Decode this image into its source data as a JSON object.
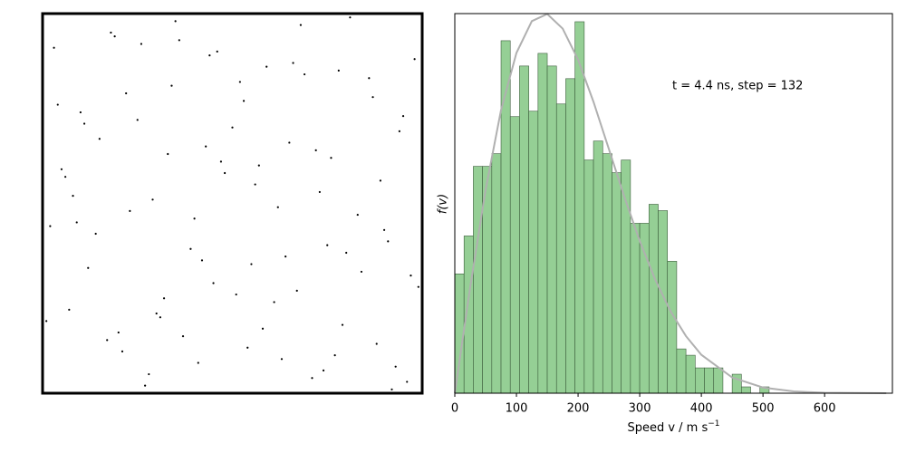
{
  "chart_data": [
    {
      "type": "scatter",
      "color": "#000000",
      "xlim": [
        0,
        1
      ],
      "ylim": [
        0,
        1
      ],
      "x": [
        0.03,
        0.12,
        0.25,
        0.37,
        0.48,
        0.59,
        0.71,
        0.83,
        0.94,
        0.07,
        0.18,
        0.29,
        0.41,
        0.53,
        0.64,
        0.76,
        0.88,
        0.98,
        0.02,
        0.15,
        0.27,
        0.34,
        0.45,
        0.56,
        0.68,
        0.79,
        0.91,
        0.1,
        0.21,
        0.33,
        0.44,
        0.51,
        0.62,
        0.74,
        0.86,
        0.97,
        0.05,
        0.17,
        0.26,
        0.39,
        0.5,
        0.61,
        0.73,
        0.81,
        0.93,
        0.09,
        0.22,
        0.31,
        0.43,
        0.55,
        0.66,
        0.77,
        0.89,
        0.99,
        0.04,
        0.14,
        0.28,
        0.36,
        0.47,
        0.58,
        0.69,
        0.8,
        0.92,
        0.11,
        0.23,
        0.32,
        0.46,
        0.54,
        0.65,
        0.75,
        0.87,
        0.96,
        0.06,
        0.19,
        0.3,
        0.4,
        0.52,
        0.63,
        0.72,
        0.84,
        0.95,
        0.08,
        0.2,
        0.35,
        0.42,
        0.57,
        0.67,
        0.78,
        0.9,
        0.01
      ],
      "y": [
        0.91,
        0.33,
        0.72,
        0.15,
        0.58,
        0.86,
        0.04,
        0.47,
        0.69,
        0.22,
        0.95,
        0.51,
        0.08,
        0.77,
        0.36,
        0.62,
        0.13,
        0.88,
        0.44,
        0.67,
        0.02,
        0.81,
        0.29,
        0.55,
        0.97,
        0.18,
        0.4,
        0.74,
        0.11,
        0.63,
        0.89,
        0.26,
        0.49,
        0.06,
        0.83,
        0.31,
        0.59,
        0.14,
        0.92,
        0.38,
        0.7,
        0.24,
        0.53,
        0.99,
        0.07,
        0.45,
        0.79,
        0.2,
        0.65,
        0.34,
        0.87,
        0.1,
        0.56,
        0.28,
        0.76,
        0.42,
        0.05,
        0.93,
        0.61,
        0.17,
        0.84,
        0.37,
        0.01,
        0.71,
        0.48,
        0.25,
        0.9,
        0.12,
        0.66,
        0.39,
        0.78,
        0.03,
        0.57,
        0.94,
        0.21,
        0.46,
        0.82,
        0.09,
        0.64,
        0.32,
        0.73,
        0.52,
        0.16,
        0.98,
        0.35,
        0.6,
        0.27,
        0.85,
        0.43,
        0.19
      ]
    },
    {
      "type": "histogram",
      "color": "#95cf95",
      "edgecolor": "#3d5e3d",
      "bins": [
        0,
        15,
        30,
        45,
        60,
        75,
        90,
        105,
        120,
        135,
        150,
        165,
        180,
        195,
        210,
        225,
        240,
        255,
        270,
        285,
        300,
        315,
        330,
        345,
        360,
        375,
        390,
        405,
        420,
        435,
        450,
        465,
        480,
        495,
        510
      ],
      "values": [
        132,
        174,
        251,
        251,
        265,
        390,
        306,
        362,
        312,
        376,
        362,
        320,
        348,
        411,
        258,
        279,
        265,
        244,
        258,
        188,
        188,
        209,
        202,
        146,
        49,
        42,
        28,
        28,
        28,
        0,
        21,
        7,
        0,
        7
      ],
      "curve": {
        "color": "#b0b0b0",
        "x": [
          0,
          25,
          50,
          75,
          100,
          125,
          150,
          175,
          200,
          225,
          250,
          275,
          300,
          325,
          350,
          375,
          400,
          450,
          500,
          550,
          600,
          700
        ],
        "y": [
          0,
          117.6,
          225.1,
          313.3,
          376.5,
          411.7,
          419.5,
          403.4,
          369.0,
          322.4,
          270.1,
          217.5,
          168.5,
          125.9,
          90.7,
          63.2,
          42.5,
          17.4,
          6.3,
          2.0,
          0.5,
          0
        ]
      },
      "xlim": [
        0,
        710
      ],
      "ylim": [
        0,
        420
      ],
      "xticks": [
        0,
        100,
        200,
        300,
        400,
        500,
        600
      ],
      "xlabel": "Speed v / m s",
      "xlabel_sup": "−1",
      "ylabel": "f(v)",
      "annotation": "t = 4.4 ns, step = 132"
    }
  ]
}
